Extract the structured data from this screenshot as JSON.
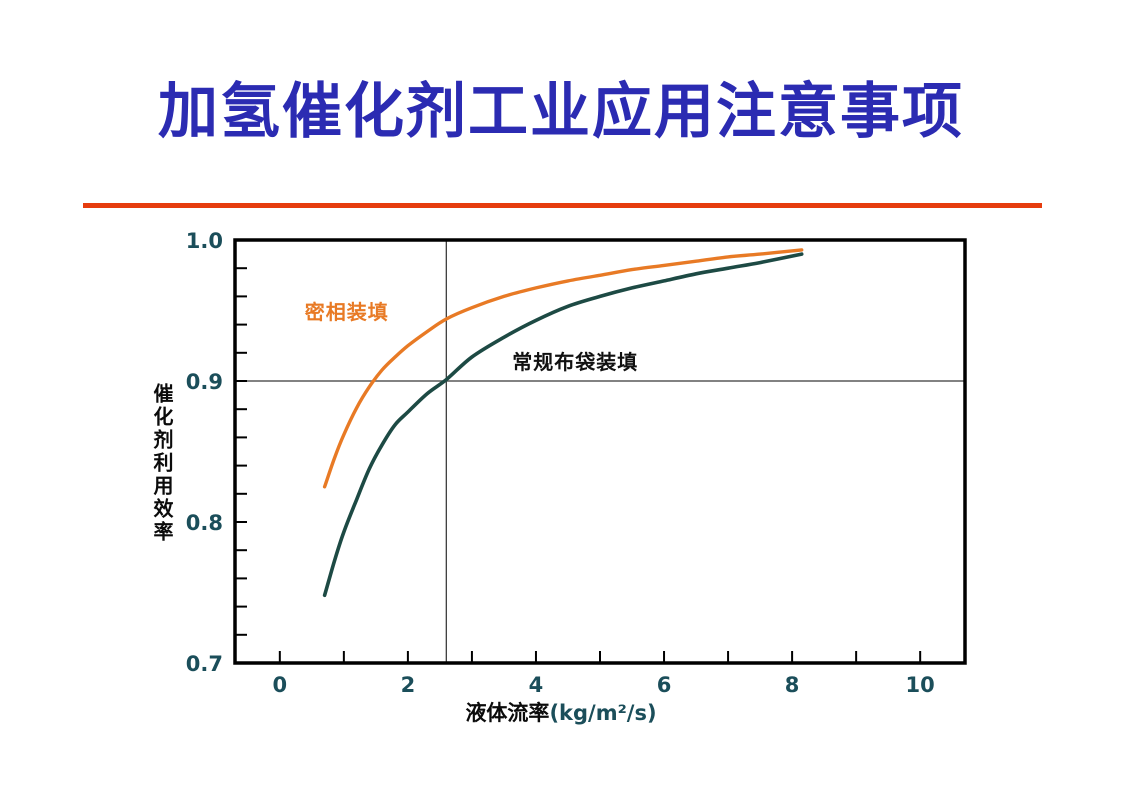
{
  "slide": {
    "title": "加氢催化剂工业应用注意事项"
  },
  "colors": {
    "title": "#2b2bb2",
    "divider": "#e63c0e",
    "axis": "#000000",
    "tick_label": "#1b4e5a",
    "ref_line_horizontal": "#595959",
    "ref_line_vertical": "#3c3c3c",
    "dense_series": "#e87a25",
    "conventional_series": "#1d4a44"
  },
  "chart_data": {
    "type": "line",
    "title": "",
    "xlabel_cn": "液体流率",
    "xlabel_unit": "(kg/m²/s)",
    "ylabel": "催化剂利用效率",
    "xlim": [
      -0.7,
      10.7
    ],
    "ylim": [
      0.7,
      1.0
    ],
    "x_major_ticks": [
      0,
      2,
      4,
      6,
      8,
      10
    ],
    "x_minor_ticks": [
      1,
      3,
      5,
      7,
      9
    ],
    "y_major_ticks": [
      0.7,
      0.8,
      0.9,
      1.0
    ],
    "y_minor_step": 0.02,
    "grid": false,
    "legend_position": "inline-annotations",
    "reference_lines": {
      "horizontal_y": 0.9,
      "vertical_x": 2.6
    },
    "series": [
      {
        "name": "密相装填",
        "color": "#e87a25",
        "points": [
          [
            0.7,
            0.825
          ],
          [
            0.85,
            0.845
          ],
          [
            1.0,
            0.862
          ],
          [
            1.2,
            0.881
          ],
          [
            1.4,
            0.896
          ],
          [
            1.6,
            0.908
          ],
          [
            1.8,
            0.917
          ],
          [
            2.0,
            0.925
          ],
          [
            2.3,
            0.935
          ],
          [
            2.6,
            0.944
          ],
          [
            3.0,
            0.952
          ],
          [
            3.5,
            0.96
          ],
          [
            4.0,
            0.966
          ],
          [
            4.5,
            0.971
          ],
          [
            5.0,
            0.975
          ],
          [
            5.5,
            0.979
          ],
          [
            6.0,
            0.982
          ],
          [
            6.5,
            0.985
          ],
          [
            7.0,
            0.988
          ],
          [
            7.5,
            0.99
          ],
          [
            8.15,
            0.993
          ]
        ]
      },
      {
        "name": "常规布袋装填",
        "color": "#1d4a44",
        "points": [
          [
            0.7,
            0.748
          ],
          [
            0.85,
            0.772
          ],
          [
            1.0,
            0.793
          ],
          [
            1.2,
            0.816
          ],
          [
            1.4,
            0.838
          ],
          [
            1.6,
            0.855
          ],
          [
            1.8,
            0.869
          ],
          [
            2.0,
            0.878
          ],
          [
            2.3,
            0.891
          ],
          [
            2.6,
            0.901
          ],
          [
            3.0,
            0.917
          ],
          [
            3.5,
            0.931
          ],
          [
            4.0,
            0.943
          ],
          [
            4.5,
            0.953
          ],
          [
            5.0,
            0.96
          ],
          [
            5.5,
            0.966
          ],
          [
            6.0,
            0.971
          ],
          [
            6.5,
            0.976
          ],
          [
            7.0,
            0.98
          ],
          [
            7.5,
            0.984
          ],
          [
            8.15,
            0.99
          ]
        ]
      }
    ],
    "annotations": [
      {
        "text": "密相装填",
        "x": 0.39,
        "y": 0.952,
        "color": "#e87a25"
      },
      {
        "text": "常规布袋装填",
        "x": 3.63,
        "y": 0.916,
        "color": "#111111"
      }
    ]
  }
}
